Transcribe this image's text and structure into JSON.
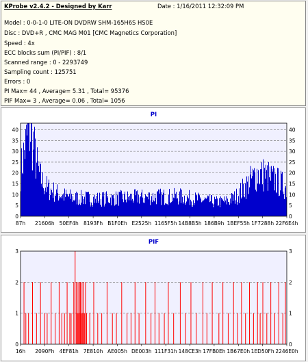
{
  "header": {
    "title": "KProbe v2.4.2 - Designed by Karr",
    "date": "Date : 1/16/2011 12:32:09 PM",
    "lines": [
      "Model : 0-0-1-0 LITE-ON DVDRW SHM-165H6S HS0E",
      "Disc : DVD+R , CMC MAG M01 [CMC Magnetics Corporation]",
      "Speed : 4x",
      "ECC blocks sum (PI/PIF) : 8/1",
      "Scanned range : 0 - 2293749",
      "Sampling count : 125751",
      "Errors : 0",
      "PI Max= 44 , Average= 5.31 , Total= 95376",
      "PIF Max= 3 , Average= 0.06 , Total= 1056"
    ]
  },
  "colors": {
    "pi_fill": "#0000cc",
    "pif_bar": "#ff0000",
    "title": "#0000cc",
    "grid": "#666666"
  },
  "chart_data": [
    {
      "type": "area",
      "title": "PI",
      "ylim": [
        0,
        43
      ],
      "yticks": [
        0,
        5,
        10,
        15,
        20,
        25,
        30,
        35,
        40
      ],
      "xticks": [
        "87h",
        "21606h",
        "50EF4h",
        "8193Fh",
        "B1F0Eh",
        "E2525h",
        "1165F5h",
        "14B8B5h",
        "186B9h",
        "1BEF55h",
        "1F7288h",
        "22F6E4h"
      ],
      "grid": "dashed horizontal",
      "profile": {
        "x": [
          0,
          0.01,
          0.02,
          0.03,
          0.04,
          0.05,
          0.06,
          0.07,
          0.08,
          0.1,
          0.13,
          0.16,
          0.2,
          0.3,
          0.4,
          0.5,
          0.6,
          0.68,
          0.74,
          0.78,
          0.81,
          0.84,
          0.87,
          0.89,
          0.92,
          0.95,
          0.98,
          1.0
        ],
        "y": [
          21,
          28,
          34,
          40,
          38,
          31,
          24,
          19,
          16,
          13,
          11,
          9.5,
          8.5,
          8,
          8.5,
          9,
          9,
          7.5,
          6.5,
          7,
          9,
          13,
          17,
          20,
          19,
          17,
          15,
          13
        ]
      }
    },
    {
      "type": "bar",
      "title": "PIF",
      "ylim": [
        0,
        3
      ],
      "yticks": [
        0,
        1,
        2,
        3
      ],
      "xticks": [
        "16h",
        "2090Fh",
        "4EF81h",
        "7E810h",
        "AE005h",
        "DE003h",
        "111F31h",
        "148CE3h",
        "17FB0Eh",
        "1B67E0h",
        "1ED50Fh",
        "2246E0h"
      ],
      "grid": "dashed horizontal",
      "spikes": [
        [
          0.013,
          2
        ],
        [
          0.02,
          1
        ],
        [
          0.03,
          1
        ],
        [
          0.045,
          2
        ],
        [
          0.06,
          1
        ],
        [
          0.075,
          2
        ],
        [
          0.09,
          1
        ],
        [
          0.1,
          1
        ],
        [
          0.115,
          2
        ],
        [
          0.13,
          1
        ],
        [
          0.145,
          2
        ],
        [
          0.155,
          1
        ],
        [
          0.165,
          1
        ],
        [
          0.175,
          2
        ],
        [
          0.185,
          1
        ],
        [
          0.19,
          1
        ],
        [
          0.2,
          2
        ],
        [
          0.205,
          3
        ],
        [
          0.21,
          2
        ],
        [
          0.213,
          1
        ],
        [
          0.216,
          2
        ],
        [
          0.219,
          1
        ],
        [
          0.222,
          2
        ],
        [
          0.225,
          2
        ],
        [
          0.228,
          1
        ],
        [
          0.231,
          2
        ],
        [
          0.234,
          1
        ],
        [
          0.237,
          2
        ],
        [
          0.24,
          1
        ],
        [
          0.244,
          2
        ],
        [
          0.248,
          1
        ],
        [
          0.26,
          1
        ],
        [
          0.275,
          2
        ],
        [
          0.29,
          1
        ],
        [
          0.305,
          1
        ],
        [
          0.325,
          2
        ],
        [
          0.345,
          1
        ],
        [
          0.36,
          1
        ],
        [
          0.38,
          2
        ],
        [
          0.4,
          1
        ],
        [
          0.415,
          1
        ],
        [
          0.43,
          2
        ],
        [
          0.445,
          1
        ],
        [
          0.47,
          2
        ],
        [
          0.49,
          1
        ],
        [
          0.505,
          2
        ],
        [
          0.52,
          1
        ],
        [
          0.54,
          1
        ],
        [
          0.555,
          2
        ],
        [
          0.575,
          1
        ],
        [
          0.6,
          2
        ],
        [
          0.62,
          1
        ],
        [
          0.64,
          2
        ],
        [
          0.66,
          1
        ],
        [
          0.685,
          2
        ],
        [
          0.7,
          1
        ],
        [
          0.72,
          2
        ],
        [
          0.745,
          1
        ],
        [
          0.76,
          2
        ],
        [
          0.78,
          1
        ],
        [
          0.8,
          2
        ],
        [
          0.815,
          1
        ],
        [
          0.83,
          2
        ],
        [
          0.845,
          1
        ],
        [
          0.86,
          2
        ],
        [
          0.875,
          1
        ],
        [
          0.89,
          2
        ],
        [
          0.9,
          1
        ],
        [
          0.91,
          2
        ],
        [
          0.925,
          1
        ],
        [
          0.94,
          2
        ],
        [
          0.955,
          1
        ],
        [
          0.97,
          2
        ],
        [
          0.985,
          1
        ],
        [
          0.995,
          2
        ]
      ]
    }
  ]
}
